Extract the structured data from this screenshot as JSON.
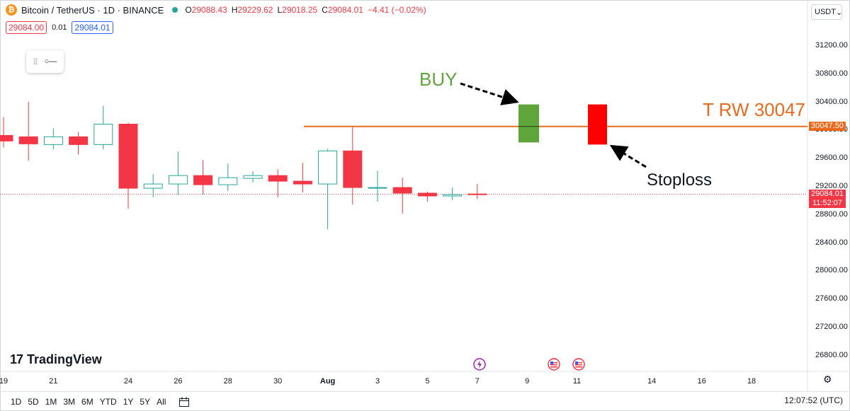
{
  "header": {
    "symbol": "Bitcoin / TetherUS · 1D · BINANCE",
    "coin_glyph": "₿",
    "ohlc": {
      "o_label": "O",
      "o": "29088.43",
      "h_label": "H",
      "h": "29229.62",
      "l_label": "L",
      "l": "29018.25",
      "c_label": "C",
      "c": "29084.01",
      "change": "−4.41 (−0.02%)"
    },
    "bid": "29084.00",
    "spread": "0.01",
    "ask": "29084.01"
  },
  "currency_button": {
    "label": "USDT",
    "arrow": "⌄"
  },
  "toolbar_widget": {
    "icon": "line-tool-icon",
    "glyph": "○—"
  },
  "y_axis": [
    "31200.00",
    "30800.00",
    "30400.00",
    "30000.00",
    "29600.00",
    "29200.00",
    "28800.00",
    "28400.00",
    "28000.00",
    "27600.00",
    "27200.00",
    "26800.00"
  ],
  "x_axis": [
    "19",
    "21",
    "24",
    "26",
    "28",
    "30",
    "Aug",
    "3",
    "5",
    "7",
    "9",
    "11",
    "14",
    "16",
    "18"
  ],
  "current_price": {
    "price": "29084.01",
    "countdown": "11:52:07"
  },
  "resistance_label_price": "30047.50",
  "annotations": {
    "buy": "BUY",
    "resistance": "T RW 30047",
    "stoploss": "Stoploss"
  },
  "logo": {
    "mark": "17",
    "text": "TradingView"
  },
  "timeframes": [
    "1D",
    "5D",
    "1M",
    "3M",
    "6M",
    "YTD",
    "1Y",
    "5Y",
    "All"
  ],
  "clock": "12:07:52 (UTC)",
  "colors": {
    "up": "#26a69a",
    "down": "#f23645",
    "resistance": "#e86a1c",
    "buy": "#5fa53b",
    "stop": "#ff0000"
  },
  "chart_data": {
    "type": "candlestick",
    "candles": [
      {
        "date": "Jul 19",
        "o": 29920,
        "h": 30180,
        "l": 29750,
        "c": 29840
      },
      {
        "date": "Jul 20",
        "o": 29900,
        "h": 30400,
        "l": 29560,
        "c": 29800
      },
      {
        "date": "Jul 21",
        "o": 29790,
        "h": 30020,
        "l": 29720,
        "c": 29900
      },
      {
        "date": "Jul 22",
        "o": 29900,
        "h": 29970,
        "l": 29650,
        "c": 29790
      },
      {
        "date": "Jul 23",
        "o": 29790,
        "h": 30340,
        "l": 29720,
        "c": 30080
      },
      {
        "date": "Jul 24",
        "o": 30080,
        "h": 30100,
        "l": 28880,
        "c": 29170
      },
      {
        "date": "Jul 25",
        "o": 29170,
        "h": 29370,
        "l": 29040,
        "c": 29230
      },
      {
        "date": "Jul 26",
        "o": 29230,
        "h": 29690,
        "l": 29080,
        "c": 29350
      },
      {
        "date": "Jul 27",
        "o": 29350,
        "h": 29570,
        "l": 29080,
        "c": 29220
      },
      {
        "date": "Jul 28",
        "o": 29220,
        "h": 29520,
        "l": 29130,
        "c": 29320
      },
      {
        "date": "Jul 29",
        "o": 29310,
        "h": 29410,
        "l": 29250,
        "c": 29350
      },
      {
        "date": "Jul 30",
        "o": 29350,
        "h": 29440,
        "l": 29040,
        "c": 29270
      },
      {
        "date": "Jul 31",
        "o": 29270,
        "h": 29530,
        "l": 29110,
        "c": 29230
      },
      {
        "date": "Aug 1",
        "o": 29230,
        "h": 29730,
        "l": 28590,
        "c": 29700
      },
      {
        "date": "Aug 2",
        "o": 29700,
        "h": 30050,
        "l": 28940,
        "c": 29180
      },
      {
        "date": "Aug 3",
        "o": 29180,
        "h": 29420,
        "l": 28980,
        "c": 29180
      },
      {
        "date": "Aug 4",
        "o": 29180,
        "h": 29320,
        "l": 28810,
        "c": 29100
      },
      {
        "date": "Aug 5",
        "o": 29100,
        "h": 29120,
        "l": 28980,
        "c": 29060
      },
      {
        "date": "Aug 6",
        "o": 29060,
        "h": 29180,
        "l": 29000,
        "c": 29080
      },
      {
        "date": "Aug 7",
        "o": 29088.43,
        "h": 29229.62,
        "l": 29018.25,
        "c": 29084.01
      }
    ],
    "resistance": 30047.5,
    "buy_zone": {
      "from": 29820,
      "to": 30360
    },
    "stop_zone": {
      "from": 29790,
      "to": 30360
    },
    "ylim": [
      26600,
      31400
    ]
  }
}
